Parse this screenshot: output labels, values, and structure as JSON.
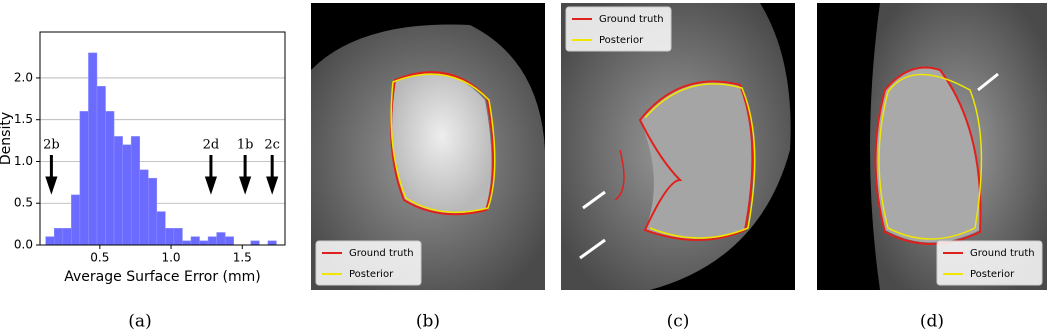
{
  "chart_data": {
    "type": "histogram",
    "xlabel": "Average Surface Error (mm)",
    "ylabel": "Density",
    "bins": [
      0.12,
      0.18,
      0.24,
      0.3,
      0.36,
      0.42,
      0.48,
      0.54,
      0.6,
      0.66,
      0.72,
      0.78,
      0.84,
      0.9,
      0.96,
      1.02,
      1.08,
      1.14,
      1.2,
      1.26,
      1.32,
      1.38,
      1.44,
      1.5,
      1.56,
      1.62,
      1.68,
      1.74
    ],
    "values": [
      0.1,
      0.2,
      0.2,
      0.6,
      1.6,
      2.3,
      1.9,
      1.6,
      1.3,
      1.2,
      1.3,
      0.9,
      0.8,
      0.4,
      0.2,
      0.2,
      0.05,
      0.1,
      0.05,
      0.1,
      0.15,
      0.1,
      0,
      0,
      0.05,
      0,
      0.05
    ],
    "color": "#6b6bff",
    "xlim": [
      0.08,
      1.8
    ],
    "ylim": [
      0,
      2.55
    ],
    "xticks": [
      0.5,
      {
        "value": 1,
        "label": "1.0"
      },
      1.5
    ],
    "yticks": [
      {
        "value": 0,
        "label": "0.0"
      },
      0.5,
      {
        "value": 1,
        "label": "1.0"
      },
      1.5,
      {
        "value": 2,
        "label": "2.0"
      }
    ],
    "grid": true,
    "annotations": [
      {
        "text": "2b",
        "x": 0.16
      },
      {
        "text": "2d",
        "x": 1.28
      },
      {
        "text": "1b",
        "x": 1.52
      },
      {
        "text": "2c",
        "x": 1.71
      }
    ]
  },
  "captions": [
    "(a)",
    "(b)",
    "(c)",
    "(d)"
  ],
  "images": [
    {
      "legend_loc": "lower left",
      "legend": [
        {
          "label": "Ground truth",
          "color": "#e0201c"
        },
        {
          "label": "Posterior",
          "color": "#f0e600"
        }
      ]
    },
    {
      "legend_loc": "upper left",
      "legend": [
        {
          "label": "Ground truth",
          "color": "#e0201c"
        },
        {
          "label": "Posterior",
          "color": "#f0e600"
        }
      ]
    },
    {
      "legend_loc": "lower right",
      "legend": [
        {
          "label": "Ground truth",
          "color": "#e0201c"
        },
        {
          "label": "Posterior",
          "color": "#f0e600"
        }
      ]
    }
  ]
}
